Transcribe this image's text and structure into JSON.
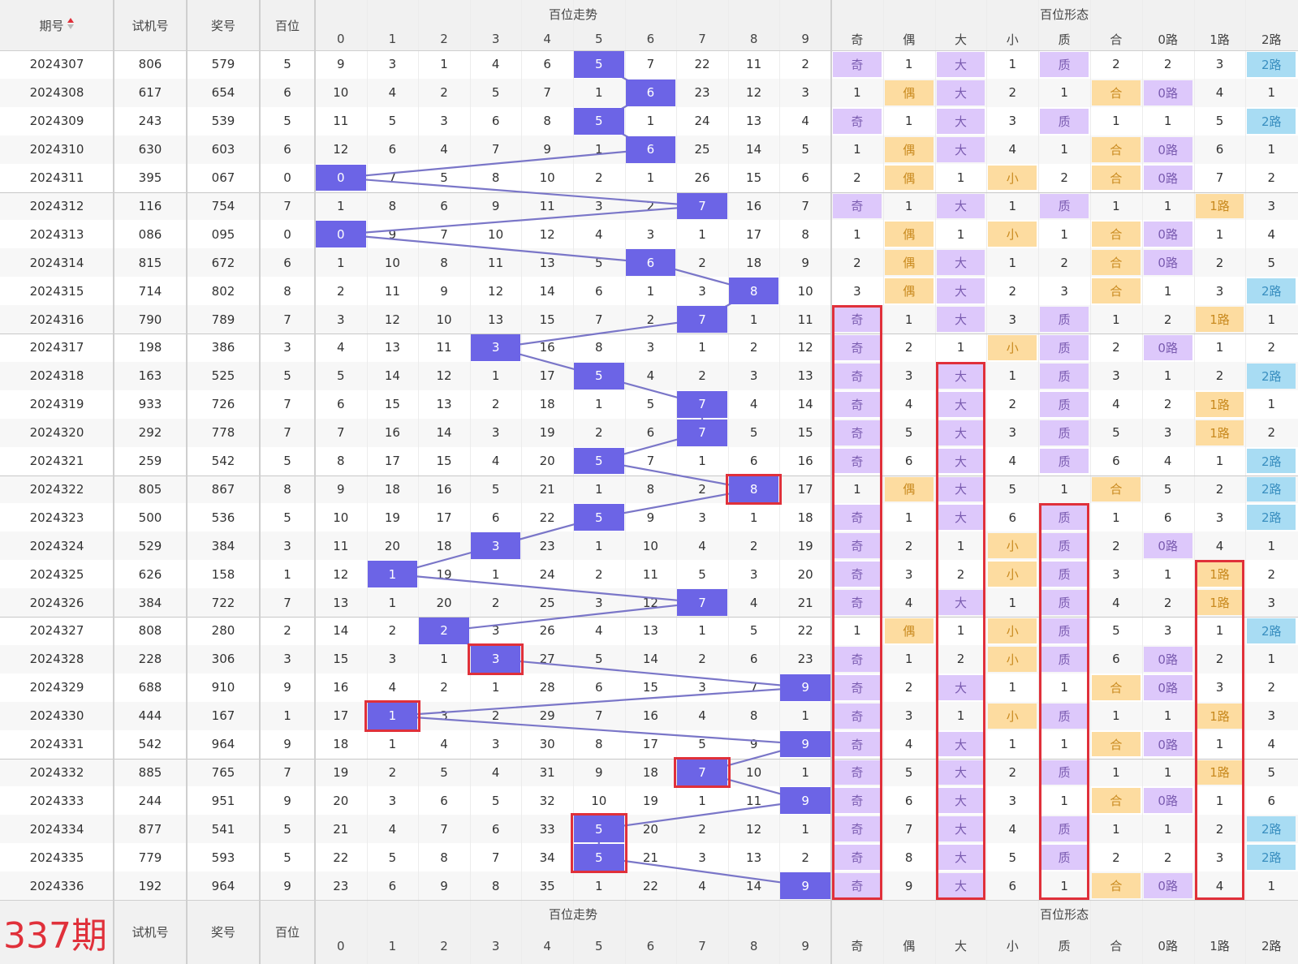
{
  "colors": {
    "ball": "#6c64e6",
    "odd_bg": "#ddc8fb",
    "even_bg": "#fddca0",
    "even_fg": "#c98a1f",
    "big_bg": "#ddc8fb",
    "small_bg": "#fddca0",
    "prime_bg": "#ddc8fb",
    "composite_bg": "#fddca0",
    "r0_bg": "#ddc8fb",
    "r1_bg": "#fddca0",
    "r2_bg": "#a8dcf3",
    "red": "#e0303a",
    "line": "#7a76c8"
  },
  "header": {
    "period": "期号",
    "sort_icon": "sort-updown-icon",
    "test_number": "试机号",
    "prize_number": "奖号",
    "hundreds": "百位",
    "trend_group": "百位走势",
    "form_group": "百位形态",
    "digits": [
      "0",
      "1",
      "2",
      "3",
      "4",
      "5",
      "6",
      "7",
      "8",
      "9"
    ],
    "forms": [
      "奇",
      "偶",
      "大",
      "小",
      "质",
      "合",
      "0路",
      "1路",
      "2路"
    ]
  },
  "footer": {
    "next_period": "337期",
    "test_number": "试机号",
    "prize_number": "奖号",
    "hundreds": "百位",
    "trend_group": "百位走势",
    "form_group": "百位形态"
  },
  "rows": [
    {
      "period": "2024307",
      "test": "806",
      "prize": "579",
      "h": "5",
      "trend": [
        "9",
        "3",
        "1",
        "4",
        "6",
        "5",
        "7",
        "22",
        "11",
        "2"
      ],
      "form": [
        "奇",
        "1",
        "大",
        "1",
        "质",
        "2",
        "2",
        "3",
        "2路"
      ]
    },
    {
      "period": "2024308",
      "test": "617",
      "prize": "654",
      "h": "6",
      "trend": [
        "10",
        "4",
        "2",
        "5",
        "7",
        "1",
        "6",
        "23",
        "12",
        "3"
      ],
      "form": [
        "1",
        "偶",
        "大",
        "2",
        "1",
        "合",
        "0路",
        "4",
        "1"
      ]
    },
    {
      "period": "2024309",
      "test": "243",
      "prize": "539",
      "h": "5",
      "trend": [
        "11",
        "5",
        "3",
        "6",
        "8",
        "5",
        "1",
        "24",
        "13",
        "4"
      ],
      "form": [
        "奇",
        "1",
        "大",
        "3",
        "质",
        "1",
        "1",
        "5",
        "2路"
      ]
    },
    {
      "period": "2024310",
      "test": "630",
      "prize": "603",
      "h": "6",
      "trend": [
        "12",
        "6",
        "4",
        "7",
        "9",
        "1",
        "6",
        "25",
        "14",
        "5"
      ],
      "form": [
        "1",
        "偶",
        "大",
        "4",
        "1",
        "合",
        "0路",
        "6",
        "1"
      ]
    },
    {
      "period": "2024311",
      "test": "395",
      "prize": "067",
      "h": "0",
      "trend": [
        "0",
        "7",
        "5",
        "8",
        "10",
        "2",
        "1",
        "26",
        "15",
        "6"
      ],
      "form": [
        "2",
        "偶",
        "1",
        "小",
        "2",
        "合",
        "0路",
        "7",
        "2"
      ]
    },
    {
      "period": "2024312",
      "test": "116",
      "prize": "754",
      "h": "7",
      "trend": [
        "1",
        "8",
        "6",
        "9",
        "11",
        "3",
        "2",
        "7",
        "16",
        "7"
      ],
      "form": [
        "奇",
        "1",
        "大",
        "1",
        "质",
        "1",
        "1",
        "1路",
        "3"
      ]
    },
    {
      "period": "2024313",
      "test": "086",
      "prize": "095",
      "h": "0",
      "trend": [
        "0",
        "9",
        "7",
        "10",
        "12",
        "4",
        "3",
        "1",
        "17",
        "8"
      ],
      "form": [
        "1",
        "偶",
        "1",
        "小",
        "1",
        "合",
        "0路",
        "1",
        "4"
      ]
    },
    {
      "period": "2024314",
      "test": "815",
      "prize": "672",
      "h": "6",
      "trend": [
        "1",
        "10",
        "8",
        "11",
        "13",
        "5",
        "6",
        "2",
        "18",
        "9"
      ],
      "form": [
        "2",
        "偶",
        "大",
        "1",
        "2",
        "合",
        "0路",
        "2",
        "5"
      ]
    },
    {
      "period": "2024315",
      "test": "714",
      "prize": "802",
      "h": "8",
      "trend": [
        "2",
        "11",
        "9",
        "12",
        "14",
        "6",
        "1",
        "3",
        "8",
        "10"
      ],
      "form": [
        "3",
        "偶",
        "大",
        "2",
        "3",
        "合",
        "1",
        "3",
        "2路"
      ]
    },
    {
      "period": "2024316",
      "test": "790",
      "prize": "789",
      "h": "7",
      "trend": [
        "3",
        "12",
        "10",
        "13",
        "15",
        "7",
        "2",
        "7",
        "1",
        "11"
      ],
      "form": [
        "奇",
        "1",
        "大",
        "3",
        "质",
        "1",
        "2",
        "1路",
        "1"
      ]
    },
    {
      "period": "2024317",
      "test": "198",
      "prize": "386",
      "h": "3",
      "trend": [
        "4",
        "13",
        "11",
        "3",
        "16",
        "8",
        "3",
        "1",
        "2",
        "12"
      ],
      "form": [
        "奇",
        "2",
        "1",
        "小",
        "质",
        "2",
        "0路",
        "1",
        "2"
      ]
    },
    {
      "period": "2024318",
      "test": "163",
      "prize": "525",
      "h": "5",
      "trend": [
        "5",
        "14",
        "12",
        "1",
        "17",
        "5",
        "4",
        "2",
        "3",
        "13"
      ],
      "form": [
        "奇",
        "3",
        "大",
        "1",
        "质",
        "3",
        "1",
        "2",
        "2路"
      ]
    },
    {
      "period": "2024319",
      "test": "933",
      "prize": "726",
      "h": "7",
      "trend": [
        "6",
        "15",
        "13",
        "2",
        "18",
        "1",
        "5",
        "7",
        "4",
        "14"
      ],
      "form": [
        "奇",
        "4",
        "大",
        "2",
        "质",
        "4",
        "2",
        "1路",
        "1"
      ]
    },
    {
      "period": "2024320",
      "test": "292",
      "prize": "778",
      "h": "7",
      "trend": [
        "7",
        "16",
        "14",
        "3",
        "19",
        "2",
        "6",
        "7",
        "5",
        "15"
      ],
      "form": [
        "奇",
        "5",
        "大",
        "3",
        "质",
        "5",
        "3",
        "1路",
        "2"
      ]
    },
    {
      "period": "2024321",
      "test": "259",
      "prize": "542",
      "h": "5",
      "trend": [
        "8",
        "17",
        "15",
        "4",
        "20",
        "5",
        "7",
        "1",
        "6",
        "16"
      ],
      "form": [
        "奇",
        "6",
        "大",
        "4",
        "质",
        "6",
        "4",
        "1",
        "2路"
      ]
    },
    {
      "period": "2024322",
      "test": "805",
      "prize": "867",
      "h": "8",
      "trend": [
        "9",
        "18",
        "16",
        "5",
        "21",
        "1",
        "8",
        "2",
        "8",
        "17"
      ],
      "form": [
        "1",
        "偶",
        "大",
        "5",
        "1",
        "合",
        "5",
        "2",
        "2路"
      ]
    },
    {
      "period": "2024323",
      "test": "500",
      "prize": "536",
      "h": "5",
      "trend": [
        "10",
        "19",
        "17",
        "6",
        "22",
        "5",
        "9",
        "3",
        "1",
        "18"
      ],
      "form": [
        "奇",
        "1",
        "大",
        "6",
        "质",
        "1",
        "6",
        "3",
        "2路"
      ]
    },
    {
      "period": "2024324",
      "test": "529",
      "prize": "384",
      "h": "3",
      "trend": [
        "11",
        "20",
        "18",
        "3",
        "23",
        "1",
        "10",
        "4",
        "2",
        "19"
      ],
      "form": [
        "奇",
        "2",
        "1",
        "小",
        "质",
        "2",
        "0路",
        "4",
        "1"
      ]
    },
    {
      "period": "2024325",
      "test": "626",
      "prize": "158",
      "h": "1",
      "trend": [
        "12",
        "1",
        "19",
        "1",
        "24",
        "2",
        "11",
        "5",
        "3",
        "20"
      ],
      "form": [
        "奇",
        "3",
        "2",
        "小",
        "质",
        "3",
        "1",
        "1路",
        "2"
      ]
    },
    {
      "period": "2024326",
      "test": "384",
      "prize": "722",
      "h": "7",
      "trend": [
        "13",
        "1",
        "20",
        "2",
        "25",
        "3",
        "12",
        "7",
        "4",
        "21"
      ],
      "form": [
        "奇",
        "4",
        "大",
        "1",
        "质",
        "4",
        "2",
        "1路",
        "3"
      ]
    },
    {
      "period": "2024327",
      "test": "808",
      "prize": "280",
      "h": "2",
      "trend": [
        "14",
        "2",
        "2",
        "3",
        "26",
        "4",
        "13",
        "1",
        "5",
        "22"
      ],
      "form": [
        "1",
        "偶",
        "1",
        "小",
        "质",
        "5",
        "3",
        "1",
        "2路"
      ]
    },
    {
      "period": "2024328",
      "test": "228",
      "prize": "306",
      "h": "3",
      "trend": [
        "15",
        "3",
        "1",
        "3",
        "27",
        "5",
        "14",
        "2",
        "6",
        "23"
      ],
      "form": [
        "奇",
        "1",
        "2",
        "小",
        "质",
        "6",
        "0路",
        "2",
        "1"
      ]
    },
    {
      "period": "2024329",
      "test": "688",
      "prize": "910",
      "h": "9",
      "trend": [
        "16",
        "4",
        "2",
        "1",
        "28",
        "6",
        "15",
        "3",
        "7",
        "9"
      ],
      "form": [
        "奇",
        "2",
        "大",
        "1",
        "1",
        "合",
        "0路",
        "3",
        "2"
      ]
    },
    {
      "period": "2024330",
      "test": "444",
      "prize": "167",
      "h": "1",
      "trend": [
        "17",
        "1",
        "3",
        "2",
        "29",
        "7",
        "16",
        "4",
        "8",
        "1"
      ],
      "form": [
        "奇",
        "3",
        "1",
        "小",
        "质",
        "1",
        "1",
        "1路",
        "3"
      ]
    },
    {
      "period": "2024331",
      "test": "542",
      "prize": "964",
      "h": "9",
      "trend": [
        "18",
        "1",
        "4",
        "3",
        "30",
        "8",
        "17",
        "5",
        "9",
        "9"
      ],
      "form": [
        "奇",
        "4",
        "大",
        "1",
        "1",
        "合",
        "0路",
        "1",
        "4"
      ]
    },
    {
      "period": "2024332",
      "test": "885",
      "prize": "765",
      "h": "7",
      "trend": [
        "19",
        "2",
        "5",
        "4",
        "31",
        "9",
        "18",
        "7",
        "10",
        "1"
      ],
      "form": [
        "奇",
        "5",
        "大",
        "2",
        "质",
        "1",
        "1",
        "1路",
        "5"
      ]
    },
    {
      "period": "2024333",
      "test": "244",
      "prize": "951",
      "h": "9",
      "trend": [
        "20",
        "3",
        "6",
        "5",
        "32",
        "10",
        "19",
        "1",
        "11",
        "9"
      ],
      "form": [
        "奇",
        "6",
        "大",
        "3",
        "1",
        "合",
        "0路",
        "1",
        "6"
      ]
    },
    {
      "period": "2024334",
      "test": "877",
      "prize": "541",
      "h": "5",
      "trend": [
        "21",
        "4",
        "7",
        "6",
        "33",
        "5",
        "20",
        "2",
        "12",
        "1"
      ],
      "form": [
        "奇",
        "7",
        "大",
        "4",
        "质",
        "1",
        "1",
        "2",
        "2路"
      ]
    },
    {
      "period": "2024335",
      "test": "779",
      "prize": "593",
      "h": "5",
      "trend": [
        "22",
        "5",
        "8",
        "7",
        "34",
        "5",
        "21",
        "3",
        "13",
        "2"
      ],
      "form": [
        "奇",
        "8",
        "大",
        "5",
        "质",
        "2",
        "2",
        "3",
        "2路"
      ]
    },
    {
      "period": "2024336",
      "test": "192",
      "prize": "964",
      "h": "9",
      "trend": [
        "23",
        "6",
        "9",
        "8",
        "35",
        "1",
        "22",
        "4",
        "14",
        "9"
      ],
      "form": [
        "奇",
        "9",
        "大",
        "6",
        "1",
        "合",
        "0路",
        "4",
        "1"
      ]
    }
  ]
}
